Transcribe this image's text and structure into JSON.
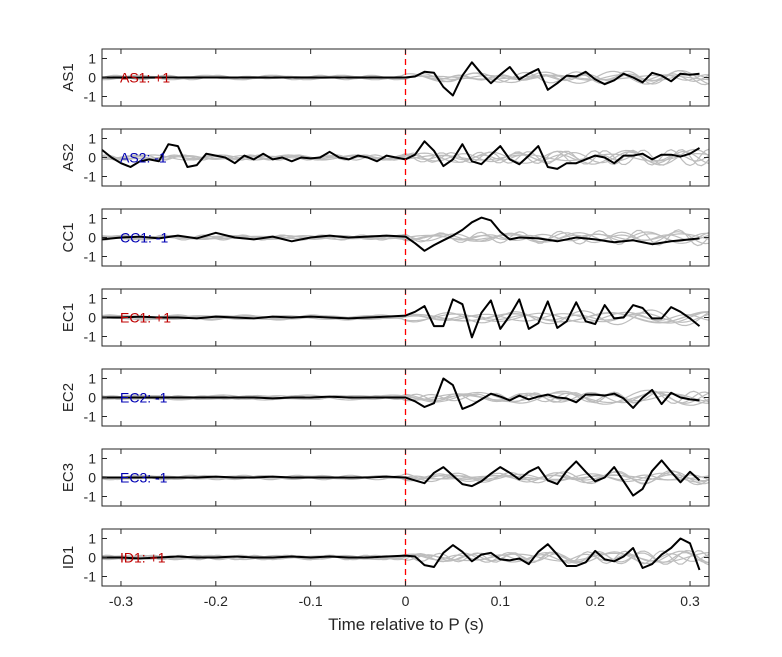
{
  "chart_data": {
    "type": "line",
    "xlabel": "Time relative to P (s)",
    "xlim": [
      -0.32,
      0.32
    ],
    "x_ticks": [
      "-0.3",
      "-0.2",
      "-0.1",
      "0",
      "0.1",
      "0.2",
      "0.3"
    ],
    "x_tick_values": [
      -0.3,
      -0.2,
      -0.1,
      0,
      0.1,
      0.2,
      0.3
    ],
    "ylim": [
      -1.5,
      1.5
    ],
    "y_ticks": [
      "1",
      "0",
      "-1"
    ],
    "y_tick_values": [
      1,
      0,
      -1
    ],
    "p_marker_x": 0,
    "colors": {
      "main_trace": "#000000",
      "background_traces": "#bdbdbd",
      "p_marker": "#ff0000",
      "positive_polarity": "#c00000",
      "negative_polarity": "#0000b4",
      "axes": "#262626"
    },
    "panels": [
      {
        "ylabel": "AS1",
        "label": "AS1: +1",
        "polarity": "positive",
        "x": [
          0.0,
          0.01,
          0.02,
          0.03,
          0.04,
          0.05,
          0.06,
          0.07,
          0.08,
          0.09,
          0.1,
          0.11,
          0.12,
          0.13,
          0.14,
          0.15,
          0.16,
          0.17,
          0.18,
          0.19,
          0.2,
          0.21,
          0.22,
          0.23,
          0.24,
          0.25,
          0.26,
          0.27,
          0.28,
          0.29,
          0.3,
          0.31
        ],
        "y": [
          0.0,
          0.05,
          0.3,
          0.25,
          -0.5,
          -0.95,
          0.1,
          0.8,
          0.2,
          -0.3,
          0.15,
          0.55,
          -0.1,
          0.2,
          0.45,
          -0.65,
          -0.3,
          0.1,
          0.05,
          0.3,
          -0.1,
          -0.35,
          -0.15,
          0.2,
          0.0,
          -0.25,
          0.25,
          0.1,
          -0.2,
          0.2,
          0.15,
          0.2
        ]
      },
      {
        "ylabel": "AS2",
        "label": "AS2: -1",
        "polarity": "negative",
        "x": [
          -0.32,
          -0.31,
          -0.3,
          -0.29,
          -0.28,
          -0.27,
          -0.26,
          -0.25,
          -0.24,
          -0.23,
          -0.22,
          -0.21,
          -0.2,
          -0.19,
          -0.18,
          -0.17,
          -0.16,
          -0.15,
          -0.14,
          -0.13,
          -0.12,
          -0.11,
          -0.1,
          -0.09,
          -0.08,
          -0.07,
          -0.06,
          -0.05,
          -0.04,
          -0.03,
          -0.02,
          -0.01,
          0.0,
          0.01,
          0.02,
          0.03,
          0.04,
          0.05,
          0.06,
          0.07,
          0.08,
          0.09,
          0.1,
          0.11,
          0.12,
          0.13,
          0.14,
          0.15,
          0.16,
          0.17,
          0.18,
          0.19,
          0.2,
          0.21,
          0.22,
          0.23,
          0.24,
          0.25,
          0.26,
          0.27,
          0.28,
          0.29,
          0.3,
          0.31
        ],
        "y": [
          0.4,
          0.0,
          -0.3,
          -0.5,
          -0.2,
          -0.1,
          -0.2,
          0.7,
          0.6,
          -0.5,
          -0.4,
          0.2,
          0.1,
          0.0,
          -0.3,
          0.1,
          -0.1,
          0.2,
          -0.1,
          0.0,
          -0.2,
          0.0,
          -0.05,
          0.0,
          0.3,
          0.0,
          -0.1,
          0.1,
          0.0,
          -0.2,
          0.1,
          0.0,
          -0.1,
          0.15,
          0.85,
          0.35,
          -0.45,
          -0.1,
          0.7,
          -0.2,
          -0.35,
          0.15,
          0.6,
          -0.1,
          -0.35,
          0.1,
          0.6,
          -0.5,
          -0.6,
          -0.3,
          -0.3,
          -0.1,
          0.1,
          0.0,
          -0.3,
          0.1,
          0.1,
          0.2,
          -0.1,
          0.15,
          0.15,
          0.05,
          0.2,
          0.5
        ]
      },
      {
        "ylabel": "CC1",
        "label": "CC1: -1",
        "polarity": "negative",
        "x": [
          -0.32,
          -0.3,
          -0.28,
          -0.26,
          -0.24,
          -0.22,
          -0.2,
          -0.18,
          -0.16,
          -0.14,
          -0.12,
          -0.1,
          -0.08,
          -0.06,
          -0.04,
          -0.02,
          0.0,
          0.01,
          0.02,
          0.03,
          0.04,
          0.05,
          0.06,
          0.07,
          0.08,
          0.09,
          0.1,
          0.11,
          0.12,
          0.14,
          0.16,
          0.18,
          0.2,
          0.22,
          0.24,
          0.26,
          0.28,
          0.3,
          0.31
        ],
        "y": [
          -0.1,
          0.0,
          0.05,
          -0.05,
          0.1,
          -0.05,
          0.25,
          0.0,
          -0.1,
          0.05,
          -0.2,
          0.0,
          0.1,
          0.0,
          0.05,
          0.1,
          0.05,
          -0.3,
          -0.7,
          -0.4,
          -0.15,
          0.1,
          0.4,
          0.8,
          1.05,
          0.9,
          0.3,
          -0.1,
          0.0,
          -0.05,
          -0.2,
          0.0,
          -0.1,
          -0.25,
          -0.15,
          -0.35,
          -0.2,
          -0.1,
          -0.05
        ]
      },
      {
        "ylabel": "EC1",
        "label": "EC1: +1",
        "polarity": "positive",
        "x": [
          -0.32,
          -0.3,
          -0.28,
          -0.26,
          -0.24,
          -0.22,
          -0.2,
          -0.18,
          -0.16,
          -0.14,
          -0.12,
          -0.1,
          -0.08,
          -0.06,
          -0.04,
          -0.02,
          0.0,
          0.01,
          0.02,
          0.03,
          0.04,
          0.05,
          0.06,
          0.07,
          0.08,
          0.09,
          0.1,
          0.11,
          0.12,
          0.13,
          0.14,
          0.15,
          0.16,
          0.17,
          0.18,
          0.19,
          0.2,
          0.21,
          0.22,
          0.23,
          0.24,
          0.25,
          0.26,
          0.27,
          0.28,
          0.29,
          0.3,
          0.31
        ],
        "y": [
          0.0,
          0.0,
          0.05,
          0.0,
          0.0,
          -0.05,
          0.05,
          0.0,
          -0.05,
          0.05,
          0.0,
          0.05,
          0.0,
          -0.05,
          0.0,
          0.05,
          0.1,
          0.3,
          0.6,
          -0.45,
          -0.45,
          0.95,
          0.7,
          -1.05,
          0.25,
          0.9,
          -0.6,
          0.1,
          0.95,
          -0.6,
          -0.3,
          0.85,
          -0.55,
          -0.2,
          0.8,
          -0.2,
          -0.35,
          0.65,
          -0.05,
          0.0,
          0.65,
          0.5,
          -0.05,
          -0.05,
          0.55,
          0.3,
          -0.05,
          -0.45
        ]
      },
      {
        "ylabel": "EC2",
        "label": "EC2: -1",
        "polarity": "negative",
        "x": [
          -0.32,
          -0.3,
          -0.28,
          -0.26,
          -0.24,
          -0.22,
          -0.2,
          -0.18,
          -0.16,
          -0.14,
          -0.12,
          -0.1,
          -0.08,
          -0.06,
          -0.04,
          -0.02,
          0.0,
          0.01,
          0.02,
          0.03,
          0.04,
          0.05,
          0.06,
          0.07,
          0.08,
          0.09,
          0.1,
          0.11,
          0.12,
          0.13,
          0.14,
          0.15,
          0.16,
          0.17,
          0.18,
          0.19,
          0.2,
          0.21,
          0.22,
          0.23,
          0.24,
          0.25,
          0.26,
          0.27,
          0.28,
          0.29,
          0.3,
          0.31
        ],
        "y": [
          0.0,
          0.0,
          0.0,
          0.0,
          0.0,
          0.0,
          0.0,
          0.0,
          0.0,
          -0.05,
          0.0,
          0.0,
          0.05,
          0.0,
          0.0,
          0.0,
          0.0,
          -0.2,
          -0.5,
          -0.3,
          1.0,
          0.65,
          -0.6,
          -0.4,
          -0.1,
          0.2,
          0.05,
          -0.15,
          0.1,
          -0.1,
          0.05,
          0.15,
          0.0,
          -0.05,
          -0.25,
          0.15,
          0.15,
          0.1,
          0.2,
          -0.05,
          -0.55,
          0.0,
          0.4,
          -0.35,
          0.25,
          0.0,
          -0.1,
          -0.15
        ]
      },
      {
        "ylabel": "EC3",
        "label": "EC3: -1",
        "polarity": "negative",
        "x": [
          -0.32,
          -0.3,
          -0.28,
          -0.26,
          -0.24,
          -0.22,
          -0.2,
          -0.18,
          -0.16,
          -0.14,
          -0.12,
          -0.1,
          -0.08,
          -0.06,
          -0.04,
          -0.02,
          0.0,
          0.01,
          0.02,
          0.03,
          0.04,
          0.05,
          0.06,
          0.07,
          0.08,
          0.09,
          0.1,
          0.11,
          0.12,
          0.13,
          0.14,
          0.15,
          0.16,
          0.17,
          0.18,
          0.19,
          0.2,
          0.21,
          0.22,
          0.23,
          0.24,
          0.25,
          0.26,
          0.27,
          0.28,
          0.29,
          0.3,
          0.31
        ],
        "y": [
          0.0,
          0.0,
          0.0,
          0.0,
          0.0,
          0.0,
          0.05,
          0.0,
          0.0,
          0.05,
          0.0,
          0.0,
          0.0,
          0.0,
          0.0,
          0.05,
          0.0,
          -0.15,
          -0.3,
          0.25,
          0.55,
          0.1,
          -0.35,
          -0.45,
          -0.2,
          0.2,
          0.55,
          0.25,
          -0.1,
          0.3,
          0.55,
          -0.15,
          -0.35,
          0.35,
          0.85,
          0.3,
          -0.2,
          0.0,
          0.55,
          -0.2,
          -0.95,
          -0.6,
          0.35,
          0.9,
          0.3,
          -0.25,
          0.3,
          -0.15
        ]
      },
      {
        "ylabel": "ID1",
        "label": "ID1: +1",
        "polarity": "positive",
        "x": [
          -0.32,
          -0.3,
          -0.28,
          -0.26,
          -0.24,
          -0.22,
          -0.2,
          -0.18,
          -0.16,
          -0.14,
          -0.12,
          -0.1,
          -0.08,
          -0.06,
          -0.04,
          -0.02,
          0.0,
          0.01,
          0.02,
          0.03,
          0.04,
          0.05,
          0.06,
          0.07,
          0.08,
          0.09,
          0.1,
          0.11,
          0.12,
          0.13,
          0.14,
          0.15,
          0.16,
          0.17,
          0.18,
          0.19,
          0.2,
          0.21,
          0.22,
          0.23,
          0.24,
          0.25,
          0.26,
          0.27,
          0.28,
          0.29,
          0.3,
          0.31
        ],
        "y": [
          0.0,
          0.0,
          -0.05,
          0.0,
          0.05,
          0.0,
          0.0,
          0.05,
          0.0,
          0.0,
          0.05,
          0.0,
          0.05,
          0.0,
          0.0,
          0.05,
          0.1,
          0.05,
          -0.4,
          -0.5,
          0.25,
          0.65,
          0.3,
          -0.2,
          0.15,
          0.25,
          -0.1,
          -0.15,
          -0.05,
          -0.35,
          0.3,
          0.7,
          0.15,
          -0.45,
          -0.45,
          -0.25,
          0.35,
          -0.1,
          -0.2,
          0.05,
          0.5,
          -0.55,
          -0.35,
          0.15,
          0.5,
          1.0,
          0.75,
          -0.65
        ]
      }
    ]
  }
}
